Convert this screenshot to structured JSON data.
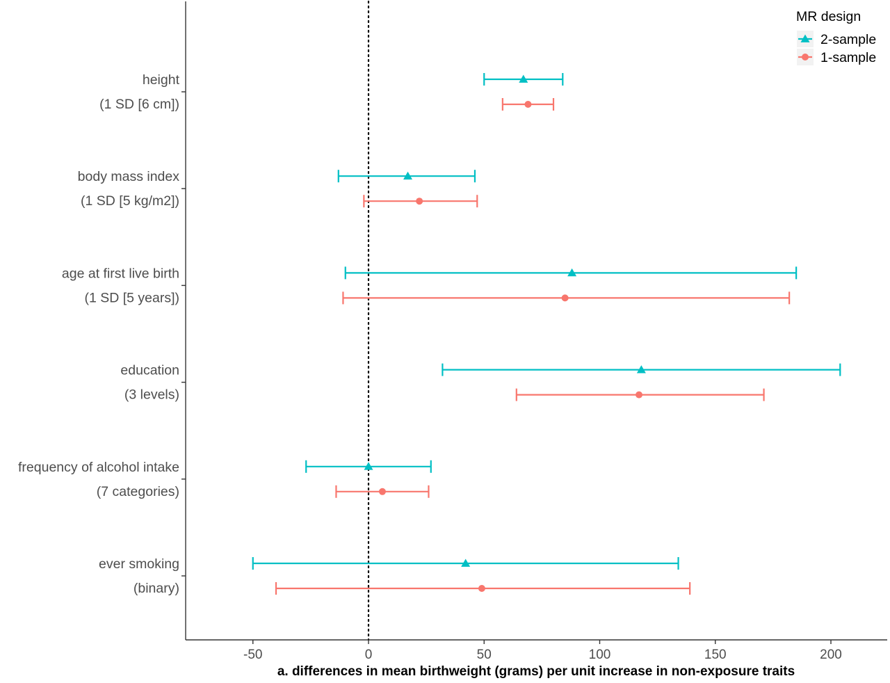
{
  "chart_data": {
    "type": "forest",
    "xlabel": "a. differences in mean birthweight (grams) per unit increase in non-exposure traits",
    "ylabel": "",
    "xlim": [
      -80,
      225
    ],
    "xticks": [
      -50,
      0,
      50,
      100,
      150,
      200
    ],
    "reference_line": {
      "x": 0,
      "style": "dotted"
    },
    "grid": false,
    "legend": {
      "title": "MR design",
      "placement": "top-right",
      "entries": [
        {
          "name": "2-sample",
          "marker": "triangle",
          "color": "#00BFC4"
        },
        {
          "name": "1-sample",
          "marker": "circle",
          "color": "#F8766D"
        }
      ]
    },
    "categories": [
      {
        "label": "height",
        "sublabel": "(1 SD [6 cm])"
      },
      {
        "label": "body mass index",
        "sublabel": "(1 SD [5 kg/m2])"
      },
      {
        "label": "age at first live birth",
        "sublabel": "(1 SD [5 years])"
      },
      {
        "label": "education",
        "sublabel": "(3 levels)"
      },
      {
        "label": "frequency of alcohol intake",
        "sublabel": "(7 categories)"
      },
      {
        "label": "ever smoking",
        "sublabel": "(binary)"
      }
    ],
    "series": [
      {
        "name": "2-sample",
        "marker": "triangle",
        "color": "#00BFC4",
        "points": [
          {
            "estimate": 67,
            "lower": 50,
            "upper": 84
          },
          {
            "estimate": 17,
            "lower": -13,
            "upper": 46
          },
          {
            "estimate": 88,
            "lower": -10,
            "upper": 185
          },
          {
            "estimate": 118,
            "lower": 32,
            "upper": 204
          },
          {
            "estimate": 0,
            "lower": -27,
            "upper": 27
          },
          {
            "estimate": 42,
            "lower": -50,
            "upper": 134
          }
        ]
      },
      {
        "name": "1-sample",
        "marker": "circle",
        "color": "#F8766D",
        "points": [
          {
            "estimate": 69,
            "lower": 58,
            "upper": 80
          },
          {
            "estimate": 22,
            "lower": -2,
            "upper": 47
          },
          {
            "estimate": 85,
            "lower": -11,
            "upper": 182
          },
          {
            "estimate": 117,
            "lower": 64,
            "upper": 171
          },
          {
            "estimate": 6,
            "lower": -14,
            "upper": 26
          },
          {
            "estimate": 49,
            "lower": -40,
            "upper": 139
          }
        ]
      }
    ]
  }
}
